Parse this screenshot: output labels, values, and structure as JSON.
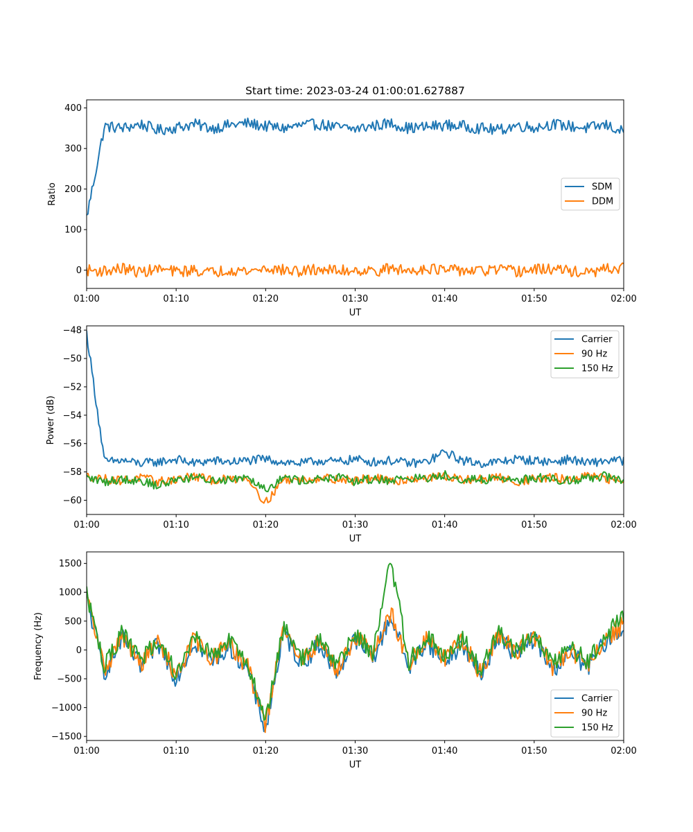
{
  "figure_title": "Start time: 2023-03-24 01:00:01.627887",
  "chart_data": [
    {
      "type": "line",
      "title": "Start time: 2023-03-24 01:00:01.627887",
      "xlabel": "UT",
      "ylabel": "Ratio",
      "xlim": [
        "01:00",
        "02:00"
      ],
      "ylim": [
        -45,
        420
      ],
      "xticks": [
        "01:00",
        "01:10",
        "01:20",
        "01:30",
        "01:40",
        "01:50",
        "02:00"
      ],
      "yticks": [
        0,
        100,
        200,
        300,
        400
      ],
      "legend_position": "center-right",
      "series": [
        {
          "name": "SDM",
          "color": "#1f77b4",
          "x": [
            "01:00",
            "01:02",
            "01:04",
            "01:06",
            "01:08",
            "01:10",
            "01:12",
            "01:14",
            "01:16",
            "01:18",
            "01:20",
            "01:22",
            "01:24",
            "01:26",
            "01:28",
            "01:30",
            "01:32",
            "01:34",
            "01:36",
            "01:38",
            "01:40",
            "01:42",
            "01:44",
            "01:46",
            "01:48",
            "01:50",
            "01:52",
            "01:54",
            "01:56",
            "01:58",
            "02:00"
          ],
          "values": [
            130,
            355,
            350,
            360,
            345,
            352,
            360,
            350,
            358,
            362,
            355,
            350,
            357,
            360,
            352,
            348,
            356,
            362,
            350,
            353,
            358,
            355,
            350,
            345,
            357,
            352,
            360,
            355,
            350,
            358,
            340
          ]
        },
        {
          "name": "DDM",
          "color": "#ff7f0e",
          "x": [
            "01:00",
            "01:02",
            "01:04",
            "01:06",
            "01:08",
            "01:10",
            "01:12",
            "01:14",
            "01:16",
            "01:18",
            "01:20",
            "01:22",
            "01:24",
            "01:26",
            "01:28",
            "01:30",
            "01:32",
            "01:34",
            "01:36",
            "01:38",
            "01:40",
            "01:42",
            "01:44",
            "01:46",
            "01:48",
            "01:50",
            "01:52",
            "01:54",
            "01:56",
            "01:58",
            "02:00"
          ],
          "values": [
            0,
            -2,
            4,
            -5,
            3,
            -4,
            0,
            -6,
            2,
            -3,
            5,
            0,
            -4,
            3,
            -2,
            1,
            -3,
            4,
            -2,
            6,
            -1,
            0,
            -3,
            2,
            -4,
            1,
            3,
            -2,
            -8,
            2,
            5
          ]
        }
      ]
    },
    {
      "type": "line",
      "title": "",
      "xlabel": "UT",
      "ylabel": "Power (dB)",
      "xlim": [
        "01:00",
        "02:00"
      ],
      "ylim": [
        -61,
        -47.7
      ],
      "xticks": [
        "01:00",
        "01:10",
        "01:20",
        "01:30",
        "01:40",
        "01:50",
        "02:00"
      ],
      "yticks": [
        -60,
        -58,
        -56,
        -54,
        -52,
        -50,
        -48
      ],
      "legend_position": "top-right",
      "series": [
        {
          "name": "Carrier",
          "color": "#1f77b4",
          "x": [
            "01:00",
            "01:02",
            "01:04",
            "01:06",
            "01:08",
            "01:10",
            "01:12",
            "01:14",
            "01:16",
            "01:18",
            "01:20",
            "01:22",
            "01:24",
            "01:26",
            "01:28",
            "01:30",
            "01:32",
            "01:34",
            "01:36",
            "01:38",
            "01:40",
            "01:42",
            "01:44",
            "01:46",
            "01:48",
            "01:50",
            "01:52",
            "01:54",
            "01:56",
            "01:58",
            "02:00"
          ],
          "values": [
            -48.2,
            -57.3,
            -57.2,
            -57.4,
            -57.3,
            -57.1,
            -57.4,
            -57.2,
            -57.3,
            -57.2,
            -57.1,
            -57.3,
            -57.4,
            -57.2,
            -57.3,
            -57.1,
            -57.3,
            -57.2,
            -57.4,
            -57.3,
            -56.6,
            -57.2,
            -57.4,
            -57.3,
            -57.1,
            -57.2,
            -57.3,
            -57.1,
            -57.4,
            -57.2,
            -57.2
          ]
        },
        {
          "name": "90 Hz",
          "color": "#ff7f0e",
          "x": [
            "01:00",
            "01:02",
            "01:04",
            "01:06",
            "01:08",
            "01:10",
            "01:12",
            "01:14",
            "01:16",
            "01:18",
            "01:20",
            "01:22",
            "01:24",
            "01:26",
            "01:28",
            "01:30",
            "01:32",
            "01:34",
            "01:36",
            "01:38",
            "01:40",
            "01:42",
            "01:44",
            "01:46",
            "01:48",
            "01:50",
            "01:52",
            "01:54",
            "01:56",
            "01:58",
            "02:00"
          ],
          "values": [
            -58.3,
            -58.5,
            -58.6,
            -58.4,
            -58.7,
            -58.5,
            -58.3,
            -58.6,
            -58.5,
            -58.4,
            -60.2,
            -58.5,
            -58.6,
            -58.4,
            -58.5,
            -58.6,
            -58.4,
            -58.7,
            -58.5,
            -58.4,
            -58.3,
            -58.6,
            -58.5,
            -58.4,
            -58.7,
            -58.5,
            -58.4,
            -58.6,
            -58.3,
            -58.5,
            -58.6
          ]
        },
        {
          "name": "150 Hz",
          "color": "#2ca02c",
          "x": [
            "01:00",
            "01:02",
            "01:04",
            "01:06",
            "01:08",
            "01:10",
            "01:12",
            "01:14",
            "01:16",
            "01:18",
            "01:20",
            "01:22",
            "01:24",
            "01:26",
            "01:28",
            "01:30",
            "01:32",
            "01:34",
            "01:36",
            "01:38",
            "01:40",
            "01:42",
            "01:44",
            "01:46",
            "01:48",
            "01:50",
            "01:52",
            "01:54",
            "01:56",
            "01:58",
            "02:00"
          ],
          "values": [
            -58.4,
            -58.7,
            -58.5,
            -58.6,
            -59.0,
            -58.5,
            -58.4,
            -58.6,
            -58.5,
            -58.3,
            -59.2,
            -58.4,
            -58.6,
            -58.5,
            -58.4,
            -58.7,
            -58.5,
            -58.6,
            -58.4,
            -58.5,
            -58.2,
            -58.5,
            -58.6,
            -58.4,
            -58.6,
            -58.4,
            -58.5,
            -58.6,
            -58.4,
            -58.3,
            -58.7
          ]
        }
      ]
    },
    {
      "type": "line",
      "title": "",
      "xlabel": "UT",
      "ylabel": "Frequency (Hz)",
      "xlim": [
        "01:00",
        "02:00"
      ],
      "ylim": [
        -1570,
        1700
      ],
      "xticks": [
        "01:00",
        "01:10",
        "01:20",
        "01:30",
        "01:40",
        "01:50",
        "02:00"
      ],
      "yticks": [
        -1500,
        -1000,
        -500,
        0,
        500,
        1000,
        1500
      ],
      "legend_position": "bottom-right",
      "series": [
        {
          "name": "Carrier",
          "color": "#1f77b4",
          "x": [
            "01:00",
            "01:02",
            "01:04",
            "01:06",
            "01:08",
            "01:10",
            "01:12",
            "01:14",
            "01:16",
            "01:18",
            "01:20",
            "01:22",
            "01:24",
            "01:26",
            "01:28",
            "01:30",
            "01:32",
            "01:34",
            "01:36",
            "01:38",
            "01:40",
            "01:42",
            "01:44",
            "01:46",
            "01:48",
            "01:50",
            "01:52",
            "01:54",
            "01:56",
            "01:58",
            "02:00"
          ],
          "values": [
            900,
            -400,
            200,
            -300,
            100,
            -500,
            150,
            -200,
            50,
            -350,
            -1400,
            300,
            -250,
            100,
            -400,
            200,
            -150,
            600,
            -300,
            150,
            -200,
            100,
            -450,
            250,
            -100,
            200,
            -350,
            -50,
            -300,
            150,
            400
          ]
        },
        {
          "name": "90 Hz",
          "color": "#ff7f0e",
          "x": [
            "01:00",
            "01:02",
            "01:04",
            "01:06",
            "01:08",
            "01:10",
            "01:12",
            "01:14",
            "01:16",
            "01:18",
            "01:20",
            "01:22",
            "01:24",
            "01:26",
            "01:28",
            "01:30",
            "01:32",
            "01:34",
            "01:36",
            "01:38",
            "01:40",
            "01:42",
            "01:44",
            "01:46",
            "01:48",
            "01:50",
            "01:52",
            "01:54",
            "01:56",
            "01:58",
            "02:00"
          ],
          "values": [
            950,
            -350,
            250,
            -250,
            150,
            -450,
            200,
            -150,
            100,
            -300,
            -1300,
            350,
            -200,
            150,
            -350,
            250,
            -100,
            650,
            -250,
            200,
            -150,
            150,
            -400,
            300,
            -50,
            250,
            -300,
            0,
            -250,
            200,
            450
          ]
        },
        {
          "name": "150 Hz",
          "color": "#2ca02c",
          "x": [
            "01:00",
            "01:02",
            "01:04",
            "01:06",
            "01:08",
            "01:10",
            "01:12",
            "01:14",
            "01:16",
            "01:18",
            "01:20",
            "01:22",
            "01:24",
            "01:26",
            "01:28",
            "01:30",
            "01:32",
            "01:34",
            "01:36",
            "01:38",
            "01:40",
            "01:42",
            "01:44",
            "01:46",
            "01:48",
            "01:50",
            "01:52",
            "01:54",
            "01:56",
            "01:58",
            "02:00"
          ],
          "values": [
            1000,
            -300,
            300,
            -200,
            200,
            -400,
            250,
            -100,
            150,
            -250,
            -1250,
            400,
            -150,
            200,
            -300,
            300,
            -50,
            1550,
            -200,
            250,
            -100,
            200,
            -350,
            350,
            0,
            300,
            -250,
            50,
            -200,
            250,
            600
          ]
        }
      ]
    }
  ]
}
